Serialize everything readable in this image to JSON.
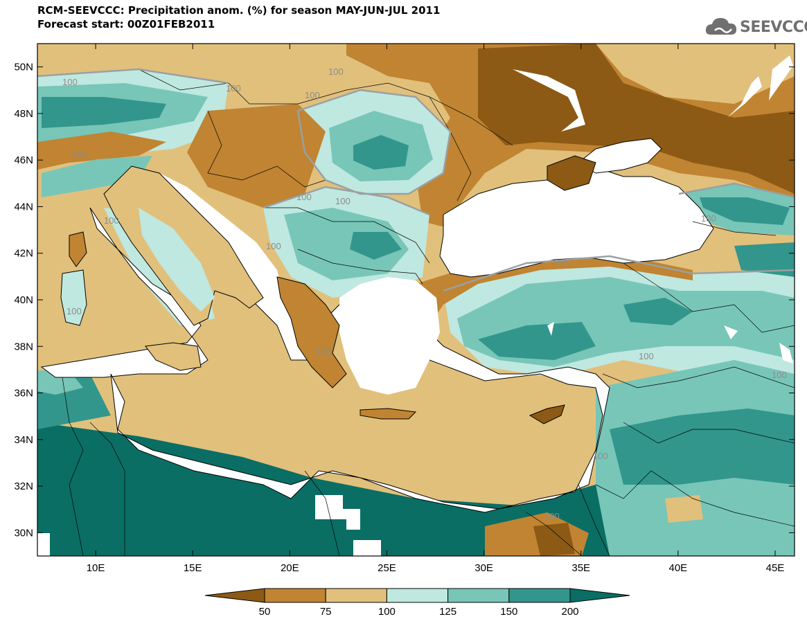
{
  "title_line1": "RCM-SEEVCCC: Precipitation anom. (%) for season MAY-JUN-JUL 2011",
  "title_line2": "Forecast start: 00Z01FEB2011",
  "logo_text": "SEEVCCC",
  "map": {
    "lon_min": 7,
    "lon_max": 46,
    "lat_min": 29,
    "lat_max": 51,
    "lat_ticks": [
      "50N",
      "48N",
      "46N",
      "44N",
      "42N",
      "40N",
      "38N",
      "36N",
      "34N",
      "32N",
      "30N"
    ],
    "lon_ticks": [
      "10E",
      "15E",
      "20E",
      "25E",
      "30E",
      "35E",
      "40E",
      "45E"
    ],
    "contour_label": "100"
  },
  "colorbar": {
    "labels": [
      "50",
      "75",
      "100",
      "125",
      "150",
      "200"
    ],
    "colors": [
      "#8c5a14",
      "#c08432",
      "#e1c07c",
      "#bfe8e0",
      "#78c6b8",
      "#32968c",
      "#0a6e64"
    ]
  }
}
